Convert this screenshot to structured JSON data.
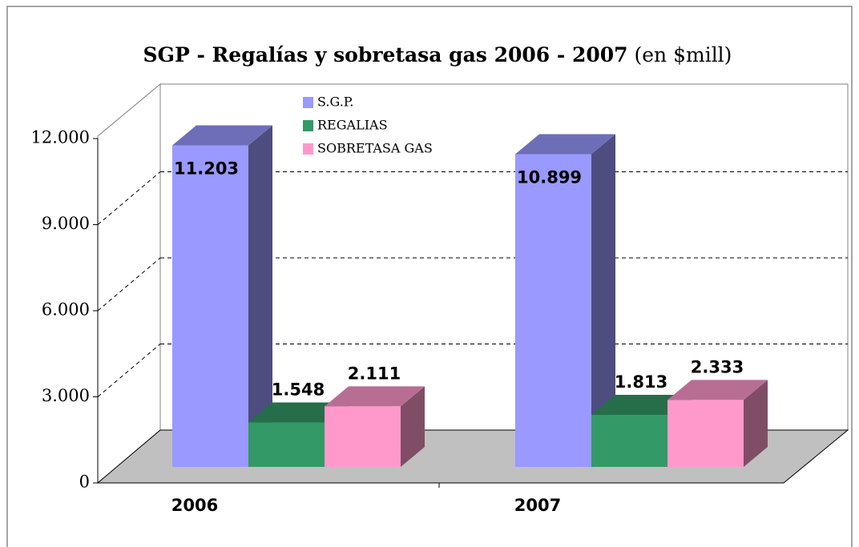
{
  "chart_data": {
    "type": "bar3d",
    "title": "SGP - Regalías y sobretasa gas 2006 - 2007",
    "subtitle": "(en $mill)",
    "categories": [
      "2006",
      "2007"
    ],
    "series": [
      {
        "name": "S.G.P.",
        "color": "#9999ff",
        "values": [
          11203,
          10899
        ],
        "value_labels": [
          "11.203",
          "10.899"
        ]
      },
      {
        "name": "REGALIAS",
        "color": "#339966",
        "values": [
          1548,
          1813
        ],
        "value_labels": [
          "1.548",
          "1.813"
        ]
      },
      {
        "name": "SOBRETASA GAS",
        "color": "#ff99cc",
        "values": [
          2111,
          2333
        ],
        "value_labels": [
          "2.111",
          "2.333"
        ]
      }
    ],
    "ylim": [
      0,
      12000
    ],
    "yticks": [
      0,
      {
        "value": 3000,
        "label": "3.000"
      },
      {
        "value": 6000,
        "label": "6.000"
      },
      {
        "value": 9000,
        "label": "9.000"
      },
      {
        "value": 12000,
        "label": "12.000"
      }
    ],
    "grid": true
  }
}
